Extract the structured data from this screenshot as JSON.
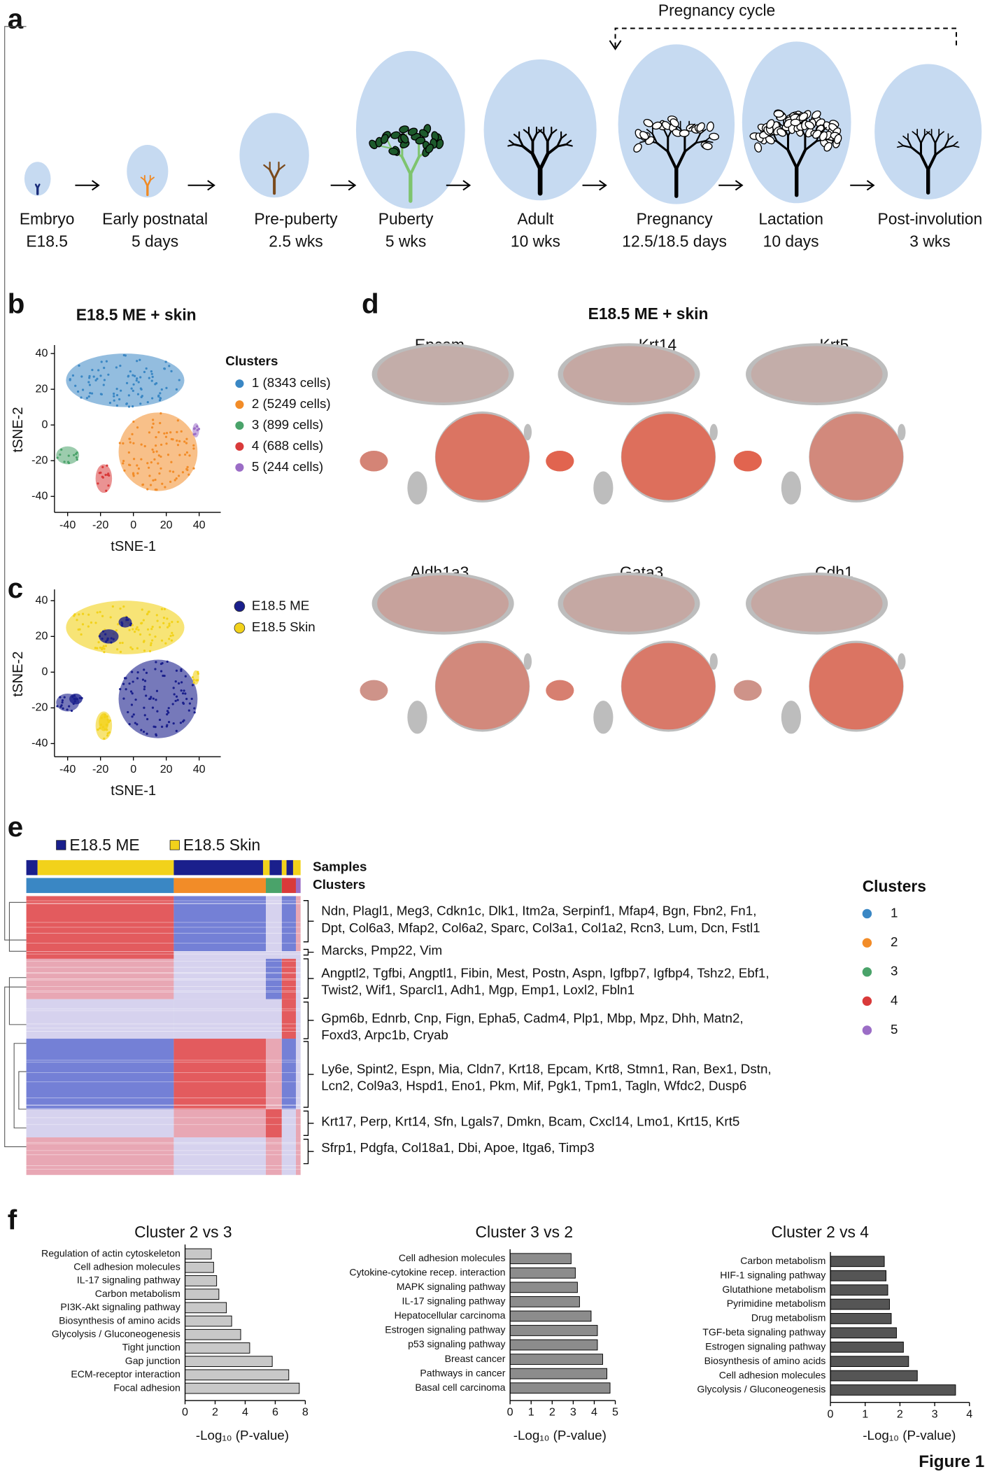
{
  "figure": {
    "caption": "Figure 1"
  },
  "panel_a": {
    "label": "a",
    "cycle_label": "Pregnancy cycle",
    "stages": [
      {
        "name": "Embryo",
        "time": "E18.5"
      },
      {
        "name": "Early postnatal",
        "time": "5 days"
      },
      {
        "name": "Pre-puberty",
        "time": "2.5 wks"
      },
      {
        "name": "Puberty",
        "time": "5 wks"
      },
      {
        "name": "Adult",
        "time": "10 wks"
      },
      {
        "name": "Pregnancy",
        "time": "12.5/18.5 days"
      },
      {
        "name": "Lactation",
        "time": "10 days"
      },
      {
        "name": "Post-involution",
        "time": "3 wks"
      }
    ]
  },
  "panel_b": {
    "label": "b",
    "title": "E18.5 ME + skin",
    "xlabel": "tSNE-1",
    "ylabel": "tSNE-2",
    "xticks": [
      -40,
      -20,
      0,
      20,
      40
    ],
    "yticks": [
      40,
      20,
      0,
      -20,
      -40
    ],
    "legend_title": "Clusters",
    "legend": [
      {
        "label": "1 (8343 cells)",
        "color": "#3a87c4"
      },
      {
        "label": "2 (5249 cells)",
        "color": "#f28c28"
      },
      {
        "label": "3 (899 cells)",
        "color": "#4aa36a"
      },
      {
        "label": "4 (688 cells)",
        "color": "#d93a3a"
      },
      {
        "label": "5 (244 cells)",
        "color": "#9b6dc6"
      }
    ]
  },
  "panel_c": {
    "label": "c",
    "xlabel": "tSNE-1",
    "ylabel": "tSNE-2",
    "xticks": [
      -40,
      -20,
      0,
      20,
      40
    ],
    "yticks": [
      40,
      20,
      0,
      -20,
      -40
    ],
    "legend": [
      {
        "label": "E18.5 ME",
        "color": "#1a1f8c"
      },
      {
        "label": "E18.5 Skin",
        "color": "#f2d21b"
      }
    ]
  },
  "panel_d": {
    "label": "d",
    "title": "E18.5 ME + skin",
    "genes": [
      "Epcam",
      "Krt14",
      "Krt5",
      "Aldh1a3",
      "Gata3",
      "Cdh1"
    ]
  },
  "panel_e": {
    "label": "e",
    "legend": [
      "E18.5 ME",
      "E18.5 Skin"
    ],
    "row_labels": [
      "Samples",
      "Clusters"
    ],
    "gene_groups": [
      [
        "Ndn, Plagl1, Meg3, Cdkn1c, Dlk1, Itm2a, Serpinf1, Mfap4, Bgn, Fbn2, Fn1,",
        "Dpt, Col6a3, Mfap2, Col6a2, Sparc, Col3a1, Col1a2, Rcn3, Lum, Dcn, Fstl1"
      ],
      [
        "Marcks, Pmp22, Vim"
      ],
      [
        "Angptl2, Tgfbi, Angptl1, Fibin, Mest, Postn, Aspn, Igfbp7, Igfbp4, Tshz2, Ebf1,",
        "Twist2, Wif1, Sparcl1, Adh1, Mgp, Emp1, Loxl2, Fbln1"
      ],
      [
        "Gpm6b, Ednrb, Cnp, Fign, Epha5, Cadm4, Plp1, Mbp, Mpz, Dhh, Matn2,",
        "Foxd3, Arpc1b, Cryab"
      ],
      [
        "Ly6e, Spint2, Espn, Mia, Cldn7, Krt18, Epcam, Krt8, Stmn1, Ran, Bex1, Dstn,",
        "Lcn2, Col9a3, Hspd1, Eno1, Pkm, Mif, Pgk1, Tpm1, Tagln, Wfdc2, Dusp6"
      ],
      [
        "Krt17, Perp, Krt14, Sfn, Lgals7, Dmkn, Bcam, Cxcl14, Lmo1, Krt15, Krt5"
      ],
      [
        "Sfrp1, Pdgfa, Col18a1, Dbi, Apoe, Itga6, Timp3"
      ]
    ],
    "legend_title": "Clusters",
    "clusters": [
      "1",
      "2",
      "3",
      "4",
      "5"
    ]
  },
  "panel_f": {
    "label": "f"
  },
  "chart_data": [
    {
      "type": "bar",
      "orientation": "horizontal",
      "title": "Cluster 2 vs 3",
      "xlabel": "-Log₁₀ (P-value)",
      "categories": [
        "Regulation of actin cytoskeleton",
        "Cell adhesion molecules",
        "IL-17 signaling pathway",
        "Carbon metabolism",
        "PI3K-Akt signaling pathway",
        "Biosynthesis of amino acids",
        "Glycolysis / Gluconeogenesis",
        "Tight junction",
        "Gap junction",
        "ECM-receptor interaction",
        "Focal adhesion"
      ],
      "values": [
        1.75,
        1.9,
        2.1,
        2.25,
        2.75,
        3.1,
        3.7,
        4.3,
        5.8,
        6.9,
        7.6
      ],
      "xlim": [
        0,
        8
      ],
      "xticks": [
        0,
        2,
        4,
        6,
        8
      ],
      "color": "#c8c8c8"
    },
    {
      "type": "bar",
      "orientation": "horizontal",
      "title": "Cluster 3 vs 2",
      "xlabel": "-Log₁₀ (P-value)",
      "categories": [
        "Cell adhesion molecules",
        "Cytokine-cytokine recep. interaction",
        "MAPK signaling pathway",
        "IL-17 signaling pathway",
        "Hepatocellular carcinoma",
        "Estrogen signaling pathway",
        "p53 signaling pathway",
        "Breast cancer",
        "Pathways in cancer",
        "Basal cell carcinoma"
      ],
      "values": [
        2.9,
        3.1,
        3.2,
        3.3,
        3.85,
        4.15,
        4.15,
        4.4,
        4.6,
        4.75
      ],
      "xlim": [
        0,
        5
      ],
      "xticks": [
        0,
        1,
        2,
        3,
        4,
        5
      ],
      "color": "#8c8c8c"
    },
    {
      "type": "bar",
      "orientation": "horizontal",
      "title": "Cluster 2 vs 4",
      "xlabel": "-Log₁₀ (P-value)",
      "categories": [
        "Carbon metabolism",
        "HIF-1 signaling pathway",
        "Glutathione metabolism",
        "Pyrimidine metabolism",
        "Drug metabolism",
        "TGF-beta signaling pathway",
        "Estrogen signaling pathway",
        "Biosynthesis of amino acids",
        "Cell adhesion molecules",
        "Glycolysis / Gluconeogenesis"
      ],
      "values": [
        1.55,
        1.6,
        1.65,
        1.7,
        1.75,
        1.9,
        2.1,
        2.25,
        2.5,
        3.6
      ],
      "xlim": [
        0,
        4
      ],
      "xticks": [
        0,
        1,
        2,
        3,
        4
      ],
      "color": "#555555"
    }
  ]
}
